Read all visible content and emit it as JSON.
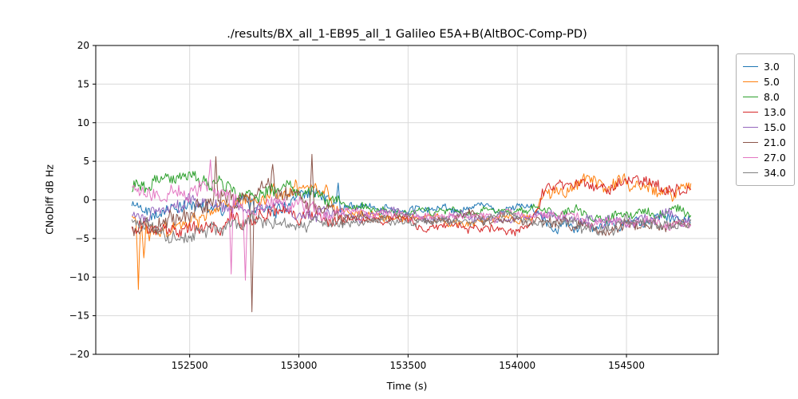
{
  "chart_data": {
    "type": "line",
    "title": "./results/BX_all_1-EB95_all_1 Galileo E5A+B(AltBOC-Comp-PD)",
    "xlabel": "Time (s)",
    "ylabel": "CNoDiff dB Hz",
    "xlim": [
      152070,
      154920
    ],
    "ylim": [
      -20,
      20
    ],
    "xticks": [
      152500,
      153000,
      153500,
      154000,
      154500
    ],
    "yticks": [
      -20,
      -15,
      -10,
      -5,
      0,
      5,
      10,
      15,
      20
    ],
    "grid": true,
    "grid_color": "#d9d9d9",
    "x_range_data": [
      152235,
      154795
    ],
    "sample_step": 5,
    "legend": {
      "position": "outside-right",
      "entries": [
        "3.0",
        "5.0",
        "8.0",
        "13.0",
        "15.0",
        "21.0",
        "27.0",
        "34.0"
      ]
    },
    "series": [
      {
        "name": "3.0",
        "color": "#1f77b4",
        "trend": [
          [
            152235,
            -0.8
          ],
          [
            152400,
            -1.2
          ],
          [
            152600,
            -0.6
          ],
          [
            152800,
            -1.0
          ],
          [
            153000,
            0.2
          ],
          [
            153120,
            0.8
          ],
          [
            153200,
            -0.6
          ],
          [
            153400,
            -1.2
          ],
          [
            153600,
            -1.5
          ],
          [
            153800,
            -1.5
          ],
          [
            154000,
            -1.2
          ],
          [
            154080,
            -1.0
          ],
          [
            154150,
            -2.8
          ],
          [
            154350,
            -3.2
          ],
          [
            154550,
            -3.0
          ],
          [
            154795,
            -2.6
          ]
        ],
        "noise": [
          [
            152235,
            0.9
          ],
          [
            153140,
            0.9
          ],
          [
            153200,
            0.5
          ],
          [
            154080,
            0.5
          ],
          [
            154150,
            0.7
          ],
          [
            154795,
            0.7
          ]
        ],
        "spikes": [
          [
            153180,
            2.2
          ]
        ]
      },
      {
        "name": "5.0",
        "color": "#ff7f0e",
        "trend": [
          [
            152235,
            -2.5
          ],
          [
            152320,
            -3.5
          ],
          [
            152500,
            -2.5
          ],
          [
            152700,
            -1.0
          ],
          [
            152900,
            1.2
          ],
          [
            153060,
            1.8
          ],
          [
            153160,
            -1.2
          ],
          [
            153300,
            -2.0
          ],
          [
            153500,
            -2.5
          ],
          [
            153700,
            -2.6
          ],
          [
            153900,
            -2.8
          ],
          [
            154060,
            -2.5
          ],
          [
            154130,
            1.2
          ],
          [
            154250,
            2.0
          ],
          [
            154400,
            1.4
          ],
          [
            154550,
            2.3
          ],
          [
            154700,
            1.4
          ],
          [
            154795,
            1.8
          ]
        ],
        "noise": [
          [
            152235,
            1.1
          ],
          [
            153140,
            1.0
          ],
          [
            153220,
            0.55
          ],
          [
            154060,
            0.55
          ],
          [
            154130,
            0.85
          ],
          [
            154795,
            0.85
          ]
        ],
        "spikes": [
          [
            152265,
            -11.6
          ],
          [
            152290,
            -7.5
          ]
        ]
      },
      {
        "name": "8.0",
        "color": "#2ca02c",
        "trend": [
          [
            152235,
            0.8
          ],
          [
            152350,
            2.0
          ],
          [
            152500,
            2.4
          ],
          [
            152650,
            1.4
          ],
          [
            152800,
            0.4
          ],
          [
            152950,
            1.0
          ],
          [
            153100,
            -0.2
          ],
          [
            153300,
            -1.0
          ],
          [
            153500,
            -1.4
          ],
          [
            153700,
            -1.5
          ],
          [
            153900,
            -1.2
          ],
          [
            154080,
            -1.0
          ],
          [
            154150,
            -1.8
          ],
          [
            154350,
            -2.0
          ],
          [
            154550,
            -2.0
          ],
          [
            154795,
            -1.9
          ]
        ],
        "noise": [
          [
            152235,
            0.95
          ],
          [
            153140,
            0.9
          ],
          [
            153220,
            0.5
          ],
          [
            154080,
            0.5
          ],
          [
            154150,
            0.7
          ],
          [
            154795,
            0.7
          ]
        ],
        "spikes": []
      },
      {
        "name": "13.0",
        "color": "#d62728",
        "trend": [
          [
            152235,
            -3.8
          ],
          [
            152400,
            -4.4
          ],
          [
            152600,
            -3.8
          ],
          [
            152780,
            -1.5
          ],
          [
            152900,
            -2.2
          ],
          [
            153100,
            -2.2
          ],
          [
            153300,
            -2.6
          ],
          [
            153500,
            -3.0
          ],
          [
            153700,
            -3.4
          ],
          [
            153900,
            -3.9
          ],
          [
            154060,
            -3.6
          ],
          [
            154130,
            1.8
          ],
          [
            154300,
            2.3
          ],
          [
            154450,
            1.5
          ],
          [
            154600,
            2.1
          ],
          [
            154795,
            1.6
          ]
        ],
        "noise": [
          [
            152235,
            1.0
          ],
          [
            153140,
            0.9
          ],
          [
            153220,
            0.55
          ],
          [
            154060,
            0.55
          ],
          [
            154130,
            0.8
          ],
          [
            154795,
            0.8
          ]
        ],
        "spikes": []
      },
      {
        "name": "15.0",
        "color": "#9467bd",
        "trend": [
          [
            152235,
            -1.6
          ],
          [
            152400,
            -2.2
          ],
          [
            152600,
            -1.6
          ],
          [
            152800,
            -1.2
          ],
          [
            153000,
            -1.6
          ],
          [
            153200,
            -2.0
          ],
          [
            153500,
            -2.1
          ],
          [
            153800,
            -2.1
          ],
          [
            154080,
            -2.0
          ],
          [
            154200,
            -2.5
          ],
          [
            154400,
            -2.8
          ],
          [
            154600,
            -2.5
          ],
          [
            154795,
            -2.6
          ]
        ],
        "noise": [
          [
            152235,
            0.9
          ],
          [
            153140,
            0.8
          ],
          [
            153220,
            0.5
          ],
          [
            154080,
            0.5
          ],
          [
            154150,
            0.7
          ],
          [
            154795,
            0.7
          ]
        ],
        "spikes": []
      },
      {
        "name": "21.0",
        "color": "#8c564b",
        "trend": [
          [
            152235,
            -3.4
          ],
          [
            152400,
            -3.0
          ],
          [
            152550,
            -1.2
          ],
          [
            152700,
            -0.2
          ],
          [
            152850,
            1.6
          ],
          [
            152980,
            0.8
          ],
          [
            153120,
            -1.4
          ],
          [
            153300,
            -2.4
          ],
          [
            153600,
            -2.5
          ],
          [
            153900,
            -2.5
          ],
          [
            154100,
            -2.9
          ],
          [
            154400,
            -3.0
          ],
          [
            154795,
            -3.0
          ]
        ],
        "noise": [
          [
            152235,
            1.1
          ],
          [
            153140,
            1.0
          ],
          [
            153220,
            0.55
          ],
          [
            154080,
            0.55
          ],
          [
            154150,
            0.75
          ],
          [
            154795,
            0.75
          ]
        ],
        "spikes": [
          [
            152620,
            5.6
          ],
          [
            152785,
            -14.5
          ],
          [
            152880,
            4.6
          ],
          [
            153060,
            5.9
          ]
        ]
      },
      {
        "name": "27.0",
        "color": "#e377c2",
        "trend": [
          [
            152235,
            0.8
          ],
          [
            152400,
            1.5
          ],
          [
            152550,
            2.0
          ],
          [
            152650,
            1.0
          ],
          [
            152760,
            -0.8
          ],
          [
            152900,
            -0.4
          ],
          [
            153050,
            -1.0
          ],
          [
            153200,
            -1.5
          ],
          [
            153400,
            -2.0
          ],
          [
            153700,
            -2.0
          ],
          [
            154000,
            -2.0
          ],
          [
            154200,
            -2.3
          ],
          [
            154400,
            -2.6
          ],
          [
            154600,
            -2.3
          ],
          [
            154795,
            -2.5
          ]
        ],
        "noise": [
          [
            152235,
            1.0
          ],
          [
            153140,
            0.9
          ],
          [
            153220,
            0.5
          ],
          [
            154080,
            0.5
          ],
          [
            154150,
            0.7
          ],
          [
            154795,
            0.7
          ]
        ],
        "spikes": [
          [
            152595,
            5.2
          ],
          [
            152690,
            -9.6
          ],
          [
            152755,
            -10.4
          ]
        ]
      },
      {
        "name": "34.0",
        "color": "#7f7f7f",
        "trend": [
          [
            152235,
            -3.6
          ],
          [
            152400,
            -4.0
          ],
          [
            152600,
            -3.6
          ],
          [
            152800,
            -3.4
          ],
          [
            153000,
            -3.0
          ],
          [
            153200,
            -2.8
          ],
          [
            153400,
            -2.6
          ],
          [
            153700,
            -2.5
          ],
          [
            154000,
            -2.6
          ],
          [
            154100,
            -3.0
          ],
          [
            154300,
            -3.2
          ],
          [
            154500,
            -3.0
          ],
          [
            154795,
            -3.0
          ]
        ],
        "noise": [
          [
            152235,
            0.95
          ],
          [
            153140,
            0.85
          ],
          [
            153220,
            0.55
          ],
          [
            154080,
            0.55
          ],
          [
            154150,
            0.75
          ],
          [
            154795,
            0.75
          ]
        ],
        "spikes": []
      }
    ]
  }
}
